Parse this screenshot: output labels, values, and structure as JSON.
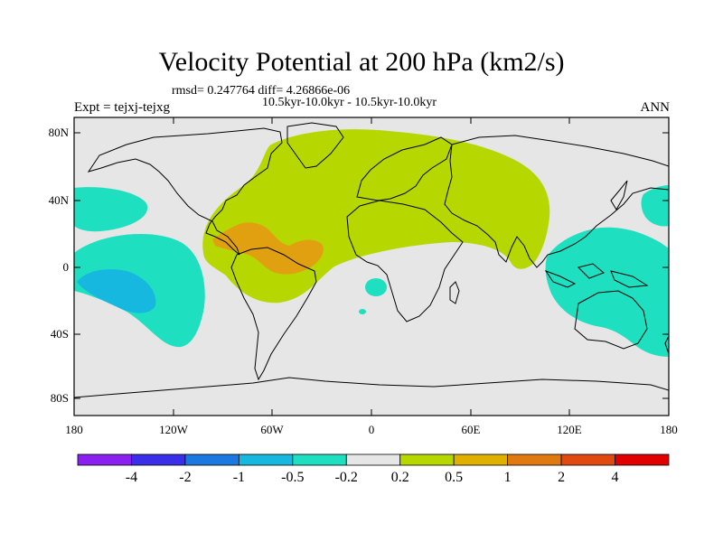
{
  "title": "Velocity Potential at 200 hPa (km2/s)",
  "stats": "rmsd= 0.247764 diff= 4.26866e-06",
  "subtitle": "10.5kyr-10.0kyr - 10.5kyr-10.0kyr",
  "experiment": "Expt = tejxj-tejxg",
  "season": "ANN",
  "lat_labels": [
    "80N",
    "40N",
    "0",
    "40S",
    "80S"
  ],
  "lon_labels": [
    "180",
    "120W",
    "60W",
    "0",
    "60E",
    "120E",
    "180"
  ],
  "colorbar": {
    "labels": [
      "-4",
      "-2",
      "-1",
      "-0.5",
      "-0.2",
      "0.2",
      "0.5",
      "1",
      "2",
      "4"
    ],
    "colors": [
      "#8a1ff0",
      "#3a2ee8",
      "#1a78e0",
      "#16b8e0",
      "#1ee0c0",
      "#e6e6e6",
      "#b6d800",
      "#e0b000",
      "#e07a10",
      "#e04a10",
      "#e00000"
    ]
  },
  "colors": {
    "background": "#e6e6e6",
    "positive_low": "#b6d800",
    "positive_mid": "#e0a010",
    "negative_low": "#1ee0c0",
    "negative_mid": "#16b8e0"
  }
}
